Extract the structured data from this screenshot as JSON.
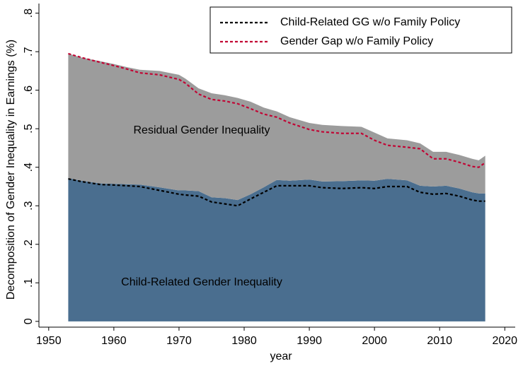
{
  "chart_data": {
    "type": "area",
    "x_label": "year",
    "y_label": "Decomposition of Gender Inequality in Earnings (%)",
    "x": [
      1953,
      1955,
      1958,
      1960,
      1962,
      1964,
      1967,
      1970,
      1971,
      1973,
      1975,
      1977,
      1979,
      1981,
      1983,
      1985,
      1987,
      1990,
      1992,
      1995,
      1998,
      2000,
      2002,
      2005,
      2007,
      2009,
      2011,
      2013,
      2015,
      2016,
      2017
    ],
    "series": [
      {
        "name": "Child-Related Gender Inequality",
        "style": "area",
        "color": "#4a6e8f",
        "values": [
          0.372,
          0.365,
          0.358,
          0.357,
          0.356,
          0.355,
          0.348,
          0.34,
          0.34,
          0.338,
          0.322,
          0.32,
          0.315,
          0.33,
          0.348,
          0.367,
          0.365,
          0.368,
          0.363,
          0.364,
          0.366,
          0.365,
          0.37,
          0.366,
          0.352,
          0.35,
          0.352,
          0.345,
          0.335,
          0.332,
          0.332
        ]
      },
      {
        "name": "Residual Gender Inequality",
        "style": "area",
        "color": "#9c9c9c",
        "values": [
          0.323,
          0.32,
          0.317,
          0.311,
          0.304,
          0.298,
          0.302,
          0.3,
          0.29,
          0.267,
          0.27,
          0.267,
          0.265,
          0.24,
          0.207,
          0.178,
          0.165,
          0.147,
          0.147,
          0.143,
          0.139,
          0.125,
          0.105,
          0.104,
          0.11,
          0.09,
          0.088,
          0.087,
          0.087,
          0.086,
          0.098
        ]
      },
      {
        "name": "Child-Related GG w/o Family Policy",
        "style": "dashed",
        "color": "#000000",
        "values": [
          0.37,
          0.363,
          0.355,
          0.354,
          0.352,
          0.35,
          0.34,
          0.33,
          0.328,
          0.325,
          0.31,
          0.305,
          0.3,
          0.318,
          0.335,
          0.352,
          0.352,
          0.352,
          0.347,
          0.345,
          0.347,
          0.345,
          0.35,
          0.35,
          0.335,
          0.33,
          0.332,
          0.325,
          0.315,
          0.312,
          0.312
        ]
      },
      {
        "name": "Gender Gap w/o Family Policy",
        "style": "dashed",
        "color": "#c10534",
        "values": [
          0.695,
          0.685,
          0.672,
          0.664,
          0.655,
          0.645,
          0.64,
          0.628,
          0.618,
          0.59,
          0.576,
          0.572,
          0.565,
          0.552,
          0.538,
          0.53,
          0.515,
          0.498,
          0.492,
          0.488,
          0.488,
          0.47,
          0.457,
          0.452,
          0.448,
          0.422,
          0.422,
          0.413,
          0.402,
          0.4,
          0.412
        ]
      }
    ],
    "xlim": [
      1948.5,
      2021.6
    ],
    "xticks": [
      1950,
      1960,
      1970,
      1980,
      1990,
      2000,
      2010,
      2020
    ],
    "ylim": [
      -0.015,
      0.825
    ],
    "yticks": [
      0,
      {
        "value": 0.1,
        "label": ".1"
      },
      {
        "value": 0.2,
        "label": ".2"
      },
      {
        "value": 0.3,
        "label": ".3"
      },
      {
        "value": 0.4,
        "label": ".4"
      },
      {
        "value": 0.5,
        "label": ".5"
      },
      {
        "value": 0.6,
        "label": ".6"
      },
      {
        "value": 0.7,
        "label": ".7"
      },
      {
        "value": 0.8,
        "label": ".8"
      }
    ],
    "legend": "top-right"
  }
}
